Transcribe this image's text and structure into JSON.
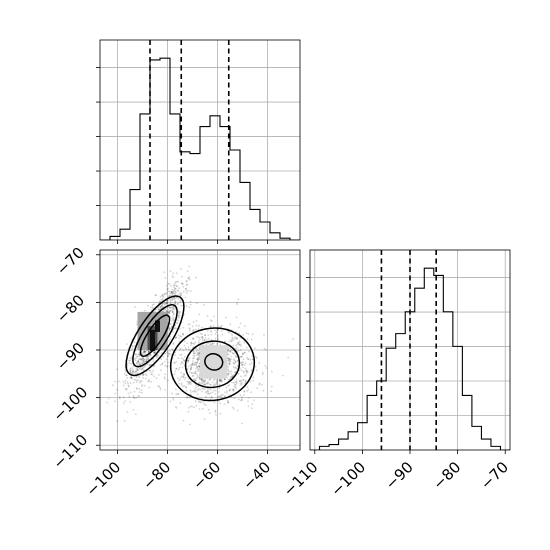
{
  "chart_data": [
    {
      "panel": "top-left",
      "type": "histogram",
      "variable_index": 0,
      "x_range": [
        -107,
        -27
      ],
      "x_ticks": [
        -100,
        -80,
        -60,
        -40
      ],
      "y_tick_labels_shown": false,
      "grid": true,
      "bin_edges": [
        -107,
        -103,
        -99,
        -95,
        -91,
        -87,
        -83,
        -79,
        -75,
        -71,
        -67,
        -63,
        -59,
        -55,
        -51,
        -47,
        -43,
        -39,
        -35,
        -31,
        -27
      ],
      "counts": [
        0,
        0.02,
        0.06,
        0.28,
        0.7,
        1.0,
        1.01,
        0.7,
        0.49,
        0.48,
        0.63,
        0.69,
        0.63,
        0.5,
        0.32,
        0.17,
        0.1,
        0.04,
        0.01,
        0
      ],
      "quantile_lines": [
        -87,
        -74.5,
        -55.5
      ]
    },
    {
      "panel": "bottom-left",
      "type": "2d-histogram-contour",
      "x_variable_index": 0,
      "y_variable_index": 1,
      "x_range": [
        -107,
        -27
      ],
      "y_range": [
        -111,
        -69
      ],
      "x_ticks": [
        -100,
        -80,
        -60,
        -40
      ],
      "y_ticks": [
        -70,
        -80,
        -90,
        -100,
        -110
      ],
      "grid": true,
      "clusters": [
        {
          "center": [
            -85,
            -87
          ],
          "orientation": "positive correlation",
          "extent_x": [
            -95,
            -75
          ],
          "extent_y": [
            -96,
            -78
          ]
        },
        {
          "center": [
            -62,
            -93
          ],
          "orientation": "round",
          "extent_x": [
            -77,
            -47
          ],
          "extent_y": [
            -103,
            -84
          ]
        }
      ],
      "peak_cells": [
        [
          -84,
          -85
        ],
        [
          -86,
          -87
        ],
        [
          -86,
          -89
        ]
      ],
      "contour_levels": 3
    },
    {
      "panel": "bottom-right",
      "type": "histogram",
      "variable_index": 1,
      "x_range": [
        -111,
        -69
      ],
      "x_ticks": [
        -110,
        -100,
        -90,
        -80,
        -70
      ],
      "y_tick_labels_shown": false,
      "grid": true,
      "bin_edges": [
        -111,
        -109,
        -107,
        -105,
        -103,
        -101,
        -99,
        -97,
        -95,
        -93,
        -91,
        -89,
        -87,
        -85,
        -83,
        -81,
        -79,
        -77,
        -75,
        -73,
        -71,
        -69
      ],
      "counts": [
        0,
        0.02,
        0.03,
        0.06,
        0.1,
        0.15,
        0.3,
        0.38,
        0.56,
        0.64,
        0.76,
        0.89,
        1.0,
        0.96,
        0.76,
        0.57,
        0.3,
        0.13,
        0.06,
        0.02,
        0
      ],
      "quantile_lines": [
        -96,
        -90,
        -84.5
      ]
    }
  ]
}
